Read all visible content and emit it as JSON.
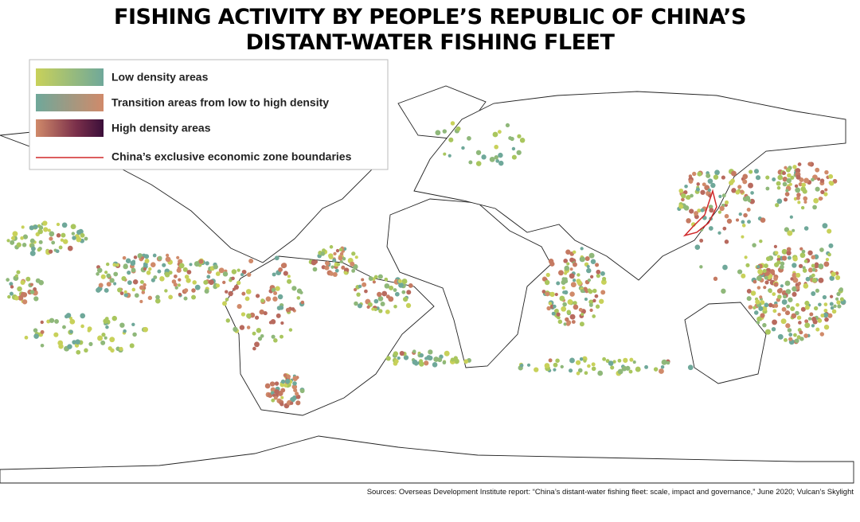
{
  "title": {
    "lines": [
      "FISHING ACTIVITY BY PEOPLE’S REPUBLIC OF CHINA’S",
      "DISTANT-WATER FISHING FLEET"
    ]
  },
  "legend": {
    "items": [
      {
        "label": "Low density areas"
      },
      {
        "label": "Transition areas from low to high density"
      },
      {
        "label": "High density areas"
      },
      {
        "label": "China’s exclusive economic zone boundaries"
      }
    ]
  },
  "source": "Sources: Overseas Development Institute report: “China’s distant-water fishing fleet: scale, impact and governance,” June 2020; Vulcan’s Skylight"
}
